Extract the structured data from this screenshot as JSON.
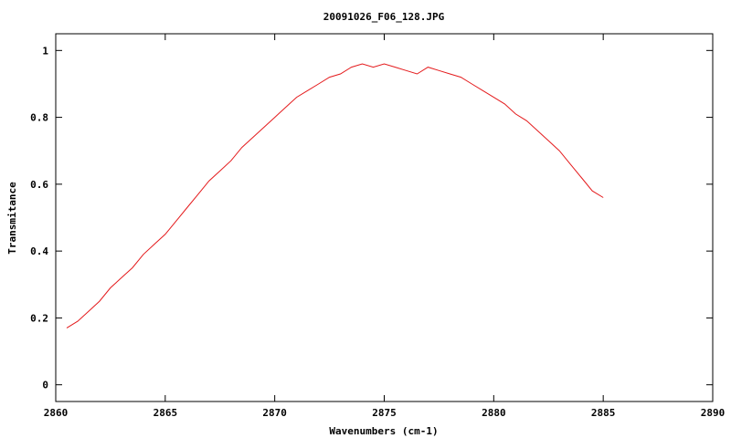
{
  "chart_data": {
    "type": "line",
    "title": "20091026_F06_128.JPG",
    "xlabel": "Wavenumbers (cm-1)",
    "ylabel": "Transmitance",
    "xlim": [
      2860,
      2890
    ],
    "ylim": [
      -0.05,
      1.05
    ],
    "xticks": [
      2860,
      2865,
      2870,
      2875,
      2880,
      2885,
      2890
    ],
    "xtick_labels": [
      "2860",
      "2865",
      "2870",
      "2875",
      "2880",
      "2885",
      "2890"
    ],
    "yticks": [
      0,
      0.2,
      0.4,
      0.6,
      0.8,
      1
    ],
    "ytick_labels": [
      "0",
      "0.2",
      "0.4",
      "0.6",
      "0.8",
      "1"
    ],
    "grid": false,
    "series": [
      {
        "color": "#e41a1c",
        "x": [
          2860.5,
          2861.0,
          2861.5,
          2862.0,
          2862.5,
          2863.0,
          2863.5,
          2864.0,
          2864.5,
          2865.0,
          2865.5,
          2866.0,
          2866.5,
          2867.0,
          2867.5,
          2868.0,
          2868.5,
          2869.0,
          2869.5,
          2870.0,
          2870.5,
          2871.0,
          2871.5,
          2872.0,
          2872.5,
          2873.0,
          2873.5,
          2874.0,
          2874.5,
          2875.0,
          2875.5,
          2876.0,
          2876.5,
          2877.0,
          2877.5,
          2878.0,
          2878.5,
          2879.0,
          2879.5,
          2880.0,
          2880.5,
          2881.0,
          2881.5,
          2882.0,
          2882.5,
          2883.0,
          2883.5,
          2884.0,
          2884.5,
          2885.0
        ],
        "y": [
          0.17,
          0.19,
          0.22,
          0.25,
          0.29,
          0.32,
          0.35,
          0.39,
          0.42,
          0.45,
          0.49,
          0.53,
          0.57,
          0.61,
          0.64,
          0.67,
          0.71,
          0.74,
          0.77,
          0.8,
          0.83,
          0.86,
          0.88,
          0.9,
          0.92,
          0.93,
          0.95,
          0.96,
          0.95,
          0.96,
          0.95,
          0.94,
          0.93,
          0.95,
          0.94,
          0.93,
          0.92,
          0.9,
          0.88,
          0.86,
          0.84,
          0.81,
          0.79,
          0.76,
          0.73,
          0.7,
          0.66,
          0.62,
          0.58,
          0.56
        ]
      }
    ]
  }
}
